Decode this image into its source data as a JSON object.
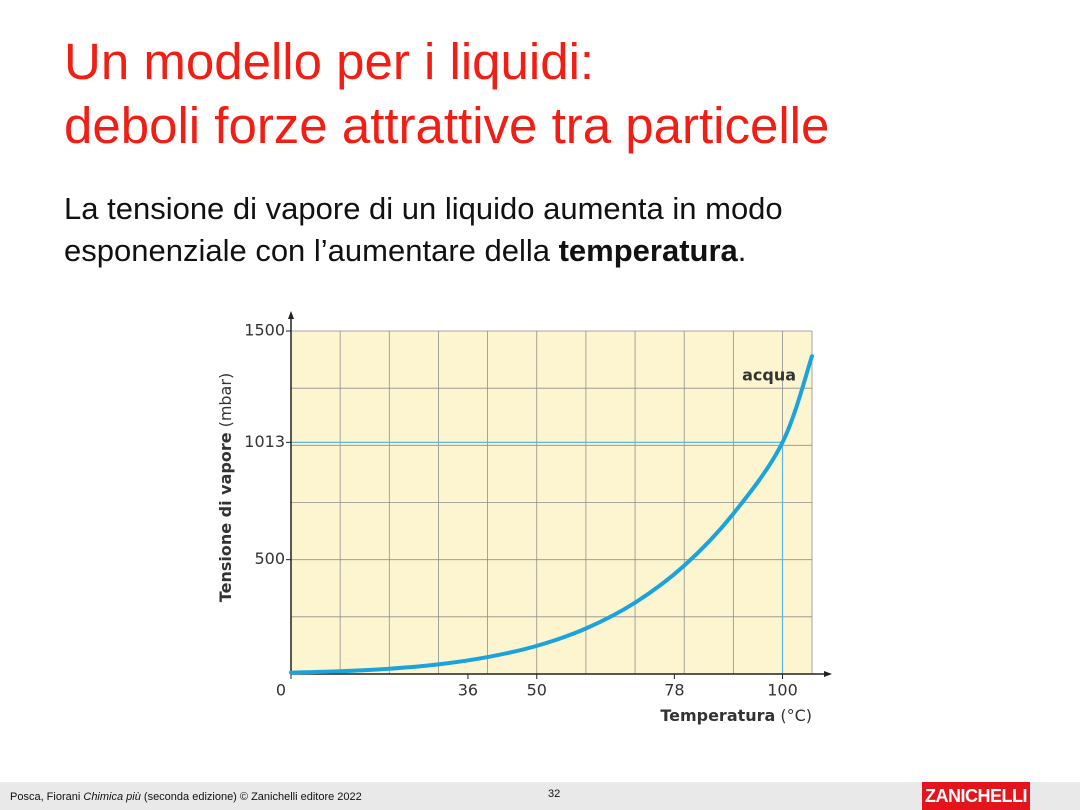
{
  "header": {
    "title_line1": "Un modello per i liquidi:",
    "title_line2": "deboli forze attrattive tra particelle"
  },
  "body": {
    "line1": "La tensione di vapore di un liquido aumenta in modo",
    "line2": "esponenziale con l’aumentare della ",
    "bold": "temperatura",
    "end": "."
  },
  "chart_data": {
    "type": "line",
    "x": [
      0,
      10,
      20,
      30,
      40,
      50,
      60,
      70,
      80,
      90,
      100,
      106
    ],
    "series": [
      {
        "name": "acqua",
        "color": "#1ba3dc",
        "values": [
          6,
          12,
          23,
          42,
          74,
          123,
          199,
          312,
          474,
          701,
          1013,
          1390
        ]
      }
    ],
    "xlabel": "Temperatura",
    "xunit": "(°C)",
    "ylabel": "Tensione di vapore",
    "yunit": "(mbar)",
    "xlim": [
      0,
      106
    ],
    "ylim": [
      0,
      1500
    ],
    "xticks": [
      0,
      36,
      50,
      78,
      100
    ],
    "yticks": [
      500,
      1013,
      1500
    ],
    "xgrid": [
      10,
      20,
      30,
      40,
      50,
      60,
      70,
      80,
      90,
      100
    ],
    "ygrid": [
      250,
      500,
      750,
      1000,
      1250
    ],
    "highlight": {
      "x": 100,
      "y": 1013,
      "color": "#5bb8e0"
    },
    "background": "#fcf5cf",
    "grid_color": "#8f8f8f"
  },
  "footer": {
    "authors": "Posca, Fiorani ",
    "book": "Chimica più",
    "edition": " (seconda edizione) © Zanichelli editore 2022",
    "page": "32",
    "logo": "ZANICHELLI"
  }
}
